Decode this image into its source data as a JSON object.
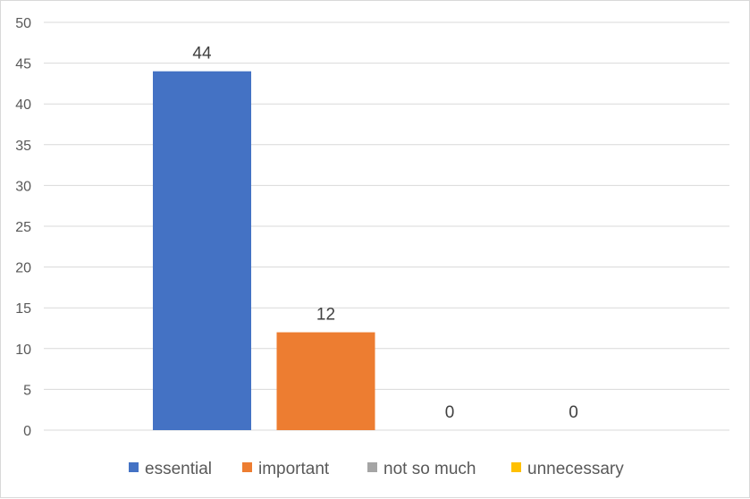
{
  "chart_data": {
    "type": "bar",
    "categories": [
      "essential",
      "important",
      "not so much",
      "unnecessary"
    ],
    "values": [
      44,
      12,
      0,
      0
    ],
    "colors": [
      "#4472C4",
      "#ED7D31",
      "#A5A5A5",
      "#FFC000"
    ],
    "ylim": [
      0,
      50
    ],
    "yticks": [
      0,
      5,
      10,
      15,
      20,
      25,
      30,
      35,
      40,
      45,
      50
    ],
    "grid": true,
    "legend_position": "bottom",
    "data_labels": true
  }
}
